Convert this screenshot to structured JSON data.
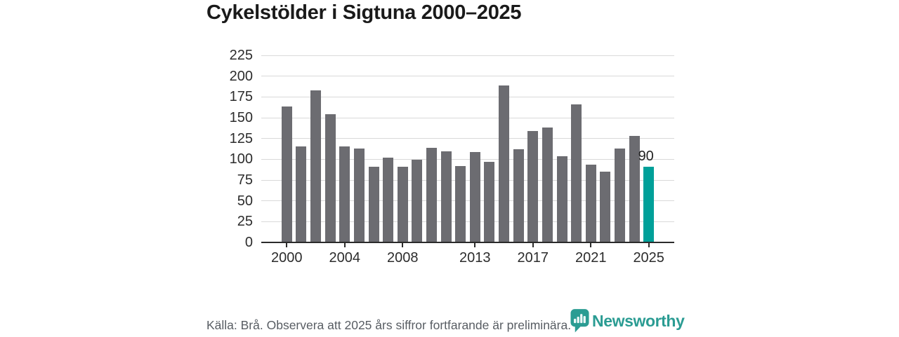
{
  "page": {
    "title": "Cykelstölder i Sigtuna 2000–2025"
  },
  "chart_data": {
    "type": "bar",
    "title": "Cykelstölder i Sigtuna 2000–2025",
    "categories": [
      "2000",
      "2001",
      "2002",
      "2003",
      "2004",
      "2005",
      "2006",
      "2007",
      "2008",
      "2009",
      "2010",
      "2011",
      "2012",
      "2013",
      "2014",
      "2015",
      "2016",
      "2017",
      "2018",
      "2019",
      "2020",
      "2021",
      "2022",
      "2023",
      "2024",
      "2025"
    ],
    "values": [
      163,
      115,
      182,
      153,
      115,
      112,
      90,
      101,
      90,
      99,
      113,
      109,
      91,
      108,
      96,
      188,
      111,
      133,
      137,
      103,
      165,
      93,
      84,
      112,
      127,
      90
    ],
    "highlight": {
      "index": 25,
      "label": "90"
    },
    "y_ticks": [
      0,
      25,
      50,
      75,
      100,
      125,
      150,
      175,
      200,
      225
    ],
    "ylim": [
      0,
      225
    ],
    "x_tick_labels": [
      "2000",
      "2004",
      "2008",
      "2013",
      "2017",
      "2021",
      "2025"
    ],
    "x_tick_indices": [
      0,
      4,
      8,
      13,
      17,
      21,
      25
    ],
    "grid": true,
    "legend_position": "none",
    "xlabel": "",
    "ylabel": ""
  },
  "footer": {
    "source_note": "Källa: Brå. Observera att 2025 års siffror fortfarande är preliminära.",
    "brand": "Newsworthy"
  },
  "colors": {
    "bar": "#6c6c71",
    "highlight_bar": "#00a099",
    "brand": "#2b9c93",
    "grid": "#d9d9d9",
    "axis": "#2b2b2b",
    "title_text": "#1a1a1a",
    "tick_text": "#2c2c2c",
    "footer_text": "#585d63"
  }
}
